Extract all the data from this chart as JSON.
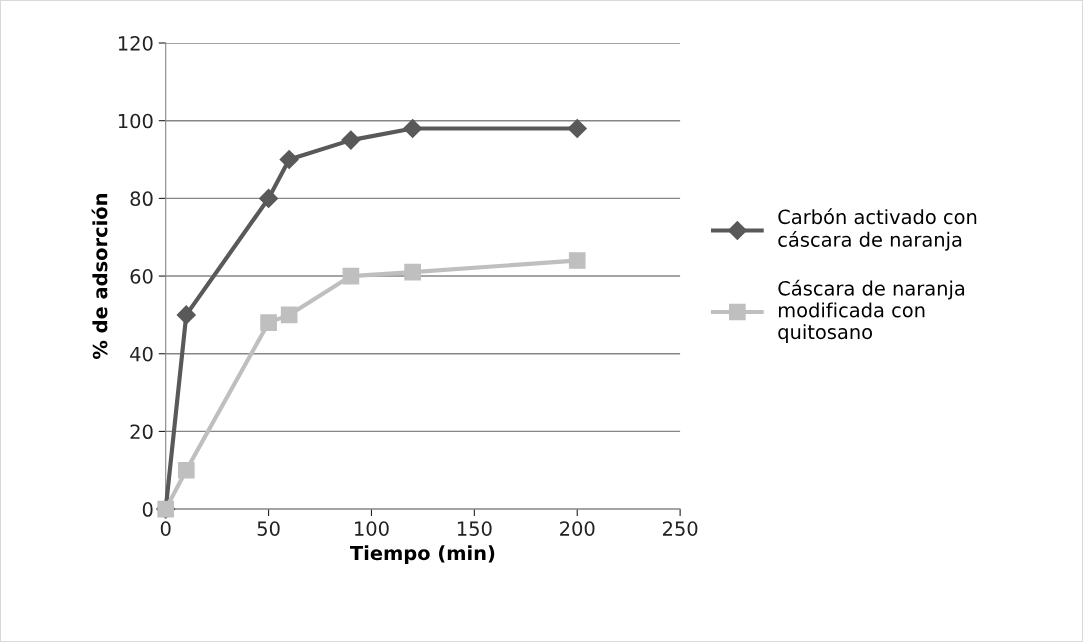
{
  "chart_data": {
    "type": "line",
    "xlabel": "Tiempo (min)",
    "ylabel": "% de adsorción",
    "xlim": [
      0,
      250
    ],
    "xticks": [
      0,
      50,
      100,
      150,
      200,
      250
    ],
    "ylim": [
      0,
      120
    ],
    "yticks": [
      0,
      20,
      40,
      60,
      80,
      100,
      120
    ],
    "grid": "y",
    "legend": "right",
    "line_style": "solid",
    "series": [
      {
        "name": "Carbón activado con cáscara de naranja",
        "color": "#595959",
        "marker": "diamond",
        "x": [
          0,
          10,
          50,
          60,
          90,
          120,
          200
        ],
        "values": [
          0,
          50,
          80,
          90,
          95,
          98,
          98
        ]
      },
      {
        "name": "Cáscara de naranja modificada con quitosano",
        "color": "#bfbfbf",
        "marker": "square",
        "x": [
          0,
          10,
          50,
          60,
          90,
          120,
          200
        ],
        "values": [
          0,
          10,
          48,
          50,
          60,
          61,
          64
        ]
      }
    ]
  }
}
